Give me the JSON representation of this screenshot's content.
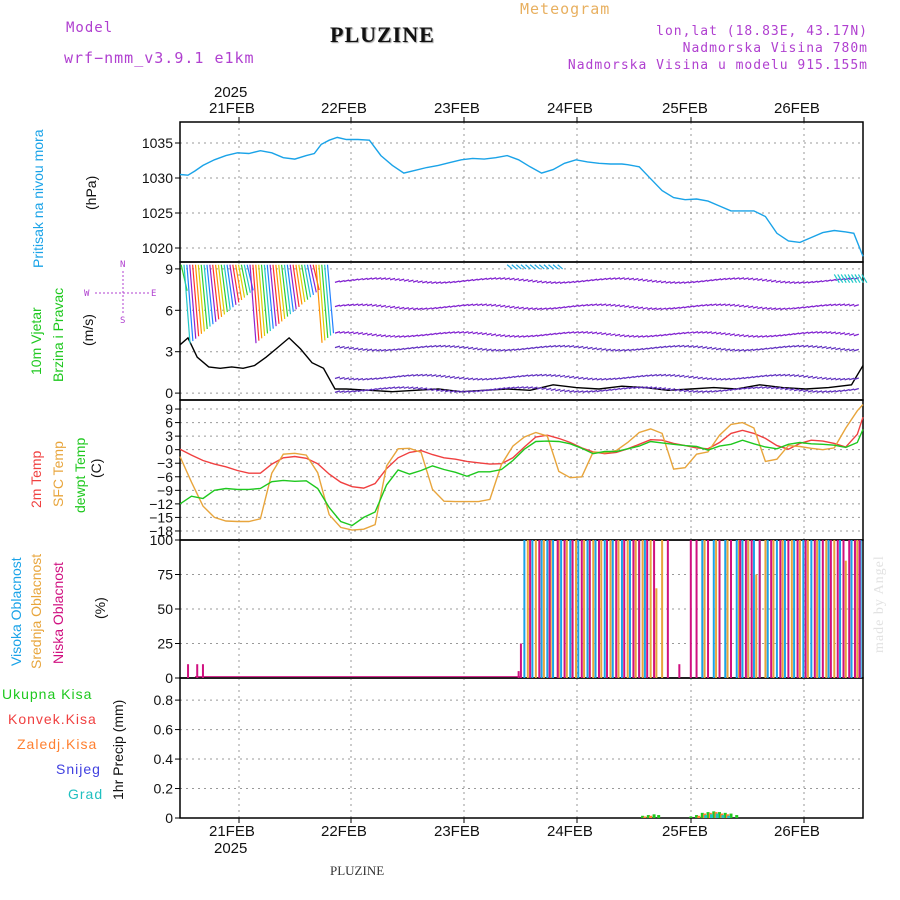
{
  "header": {
    "model_label": "Model",
    "model_name": "wrf−nmm_v3.9.1  e1km",
    "title": "PLUZINE",
    "product": "Meteogram",
    "lonlat": "lon,lat (18.83E, 43.17N)",
    "elevation": "Nadmorska Visina 780m",
    "model_elevation": "Nadmorska Visina u modelu 915.155m",
    "year_label": "2025"
  },
  "footer": {
    "station": "PLUZINE",
    "year_label": "2025"
  },
  "watermark": "made by Angel",
  "colors": {
    "pressure": "#1aa3e8",
    "t2m": "#f04040",
    "sfc": "#e8a53c",
    "dewpt": "#1ec81e",
    "high_cloud": "#1aa3e8",
    "mid_cloud": "#e8a53c",
    "low_cloud": "#d01080",
    "total_precip": "#1ec81e",
    "conv_precip": "#f04040",
    "frozen_precip": "#ff8030",
    "snow": "#4040e0",
    "graupel": "#20c0c0",
    "wind_label": "#1ec81e",
    "legend_purple": "#b040d0"
  },
  "chart_data": [
    {
      "type": "line",
      "panel": "pressure",
      "ylabel": [
        "Pritisak na nivou mora",
        "(hPa)"
      ],
      "ylim": [
        1018,
        1038
      ],
      "yticks": [
        1020,
        1025,
        1030,
        1035
      ],
      "x_ticks": [
        "21FEB",
        "22FEB",
        "23FEB",
        "24FEB",
        "25FEB",
        "26FEB"
      ],
      "x_range_days": [
        20.55,
        26.5
      ],
      "grid": true,
      "series": [
        {
          "name": "Pritisak na nivou mora",
          "x": [
            20.55,
            20.62,
            20.68,
            20.75,
            20.85,
            20.95,
            21.05,
            21.15,
            21.25,
            21.35,
            21.45,
            21.55,
            21.65,
            21.72,
            21.78,
            21.85,
            21.92,
            22.0,
            22.1,
            22.2,
            22.3,
            22.4,
            22.5,
            22.6,
            22.7,
            22.8,
            22.9,
            23.0,
            23.1,
            23.2,
            23.3,
            23.4,
            23.5,
            23.6,
            23.7,
            23.8,
            23.9,
            24.0,
            24.1,
            24.2,
            24.3,
            24.4,
            24.45,
            24.55,
            24.65,
            24.75,
            24.85,
            24.95,
            25.05,
            25.15,
            25.25,
            25.35,
            25.45,
            25.55,
            25.65,
            25.75,
            25.85,
            25.95,
            26.05,
            26.15,
            26.25,
            26.35,
            26.42,
            26.5
          ],
          "y": [
            1030.5,
            1030.4,
            1031.0,
            1031.8,
            1032.6,
            1033.2,
            1033.6,
            1033.5,
            1033.9,
            1033.6,
            1032.9,
            1032.7,
            1033.2,
            1033.5,
            1034.8,
            1035.4,
            1035.8,
            1035.5,
            1035.5,
            1035.4,
            1033.2,
            1031.8,
            1030.7,
            1031.1,
            1031.5,
            1031.8,
            1032.2,
            1032.6,
            1032.8,
            1032.7,
            1032.9,
            1033.2,
            1032.6,
            1031.6,
            1030.7,
            1031.2,
            1032.1,
            1032.6,
            1032.3,
            1032.1,
            1032.0,
            1032.0,
            1031.9,
            1031.6,
            1029.9,
            1028.2,
            1027.2,
            1026.9,
            1027.0,
            1026.7,
            1026.0,
            1025.3,
            1025.3,
            1025.3,
            1024.5,
            1022.1,
            1021.0,
            1020.8,
            1021.5,
            1022.2,
            1022.5,
            1022.3,
            1022.1,
            1018.8
          ]
        }
      ]
    },
    {
      "type": "line",
      "panel": "wind",
      "ylabel": [
        "10m Vjetar",
        "Brzina i Pravac",
        "(m/s)"
      ],
      "compass": [
        "N",
        "W",
        "E",
        "S"
      ],
      "ylim": [
        -0.5,
        9.5
      ],
      "yticks": [
        0,
        3,
        6,
        9
      ],
      "grid": true,
      "series": [
        {
          "name": "brzina",
          "x": [
            20.55,
            20.62,
            20.7,
            20.8,
            20.9,
            21.0,
            21.1,
            21.2,
            21.3,
            21.4,
            21.5,
            21.6,
            21.7,
            21.8,
            21.9,
            22.0,
            22.2,
            22.4,
            22.6,
            22.8,
            23.0,
            23.2,
            23.4,
            23.6,
            23.8,
            24.0,
            24.2,
            24.4,
            24.6,
            24.8,
            25.0,
            25.2,
            25.4,
            25.6,
            25.8,
            26.0,
            26.2,
            26.4,
            26.5
          ],
          "y": [
            3.5,
            4.0,
            2.6,
            1.9,
            1.8,
            1.9,
            1.8,
            2.0,
            2.6,
            3.3,
            4.0,
            3.2,
            2.2,
            1.8,
            0.3,
            0.3,
            0.2,
            0.1,
            0.2,
            0.3,
            0.1,
            0.2,
            0.3,
            0.2,
            0.6,
            0.4,
            0.3,
            0.5,
            0.4,
            0.2,
            0.3,
            0.4,
            0.3,
            0.6,
            0.4,
            0.3,
            0.4,
            0.6,
            2.0
          ]
        }
      ]
    },
    {
      "type": "line",
      "panel": "temperature",
      "ylabel": [
        "2m Temp",
        "SFC Temp",
        "dewpt Temp",
        "(C)"
      ],
      "ylim": [
        -20,
        11
      ],
      "yticks": [
        9,
        6,
        3,
        0,
        -3,
        -6,
        -9,
        -12,
        -15,
        -18
      ],
      "grid": true,
      "series": [
        {
          "name": "2m Temp",
          "x": [
            20.55,
            20.65,
            20.75,
            20.85,
            20.95,
            21.05,
            21.15,
            21.25,
            21.35,
            21.45,
            21.55,
            21.65,
            21.75,
            21.85,
            21.95,
            22.05,
            22.15,
            22.25,
            22.35,
            22.45,
            22.55,
            22.65,
            22.75,
            22.85,
            22.95,
            23.05,
            23.15,
            23.25,
            23.35,
            23.45,
            23.55,
            23.65,
            23.75,
            23.85,
            23.95,
            24.05,
            24.15,
            24.25,
            24.35,
            24.45,
            24.55,
            24.65,
            24.75,
            24.85,
            24.95,
            25.05,
            25.15,
            25.25,
            25.35,
            25.45,
            25.55,
            25.65,
            25.75,
            25.85,
            25.95,
            26.05,
            26.15,
            26.25,
            26.35,
            26.45,
            26.5
          ],
          "y": [
            0.1,
            -1.2,
            -2.4,
            -3.2,
            -3.8,
            -4.6,
            -5.2,
            -5.2,
            -3.2,
            -1.8,
            -1.5,
            -1.9,
            -3.1,
            -5.4,
            -7.2,
            -8.2,
            -8.5,
            -7.5,
            -4.2,
            -1.8,
            -0.6,
            -0.2,
            -1.1,
            -1.8,
            -2.1,
            -2.6,
            -2.9,
            -3.2,
            -3.1,
            -1.8,
            0.6,
            2.8,
            3.2,
            2.5,
            1.6,
            0.4,
            -0.5,
            -0.9,
            -0.6,
            0.2,
            1.2,
            2.2,
            2.1,
            1.4,
            0.9,
            0.4,
            0.2,
            1.6,
            3.6,
            4.3,
            3.6,
            2.5,
            0.9,
            0.1,
            1.4,
            2.1,
            1.9,
            1.4,
            0.6,
            3.4,
            7.2
          ]
        },
        {
          "name": "SFC Temp",
          "x": [
            20.55,
            20.65,
            20.75,
            20.85,
            20.95,
            21.05,
            21.15,
            21.25,
            21.35,
            21.45,
            21.55,
            21.65,
            21.75,
            21.85,
            21.95,
            22.05,
            22.15,
            22.25,
            22.35,
            22.45,
            22.55,
            22.65,
            22.75,
            22.85,
            22.95,
            23.05,
            23.15,
            23.25,
            23.35,
            23.45,
            23.55,
            23.65,
            23.75,
            23.85,
            23.95,
            24.05,
            24.15,
            24.25,
            24.35,
            24.45,
            24.55,
            24.65,
            24.75,
            24.85,
            24.95,
            25.05,
            25.15,
            25.25,
            25.35,
            25.45,
            25.55,
            25.65,
            25.75,
            25.85,
            25.95,
            26.05,
            26.15,
            26.25,
            26.35,
            26.45,
            26.5
          ],
          "y": [
            -1.5,
            -7.2,
            -12.5,
            -15.0,
            -15.8,
            -15.9,
            -15.9,
            -15.3,
            -5.2,
            -1.0,
            -0.8,
            -1.2,
            -5.1,
            -14.4,
            -17.2,
            -17.8,
            -17.6,
            -16.6,
            -3.6,
            0.2,
            0.3,
            -0.6,
            -8.8,
            -11.4,
            -11.5,
            -11.5,
            -11.5,
            -11.0,
            -3.3,
            0.8,
            2.8,
            3.8,
            3.0,
            -4.8,
            -6.2,
            -6.0,
            -0.5,
            -0.7,
            -0.2,
            1.6,
            3.8,
            4.6,
            3.6,
            -4.3,
            -4.0,
            -1.0,
            -0.5,
            3.2,
            5.6,
            6.0,
            4.8,
            -2.6,
            -2.1,
            0.9,
            0.7,
            0.3,
            0.0,
            0.4,
            4.8,
            8.6,
            10.0
          ]
        },
        {
          "name": "dewpt Temp",
          "x": [
            20.55,
            20.65,
            20.75,
            20.85,
            20.95,
            21.05,
            21.15,
            21.25,
            21.35,
            21.45,
            21.55,
            21.65,
            21.75,
            21.85,
            21.95,
            22.05,
            22.15,
            22.25,
            22.35,
            22.45,
            22.55,
            22.65,
            22.75,
            22.85,
            22.95,
            23.05,
            23.15,
            23.25,
            23.35,
            23.45,
            23.55,
            23.65,
            23.75,
            23.85,
            23.95,
            24.05,
            24.15,
            24.25,
            24.35,
            24.45,
            24.55,
            24.65,
            24.75,
            24.85,
            24.95,
            25.05,
            25.15,
            25.25,
            25.35,
            25.45,
            25.55,
            25.65,
            25.75,
            25.85,
            25.95,
            26.05,
            26.15,
            26.25,
            26.35,
            26.45,
            26.5
          ],
          "y": [
            -12.0,
            -10.3,
            -10.8,
            -9.0,
            -8.6,
            -8.8,
            -8.8,
            -8.6,
            -7.1,
            -6.8,
            -7.0,
            -6.9,
            -8.6,
            -12.8,
            -15.9,
            -16.8,
            -15.0,
            -13.8,
            -7.8,
            -4.5,
            -5.4,
            -4.6,
            -3.6,
            -4.4,
            -5.0,
            -5.9,
            -4.9,
            -4.9,
            -4.4,
            -2.4,
            0.1,
            1.8,
            1.9,
            1.8,
            1.3,
            0.3,
            -0.9,
            -0.4,
            -0.4,
            0.2,
            0.8,
            1.8,
            1.5,
            1.2,
            0.9,
            0.7,
            -0.1,
            0.8,
            1.2,
            2.1,
            1.3,
            0.6,
            0.2,
            1.2,
            1.6,
            1.3,
            1.2,
            1.0,
            0.5,
            1.6,
            4.5
          ]
        }
      ]
    },
    {
      "type": "bar",
      "panel": "clouds",
      "ylabel": [
        "Visoka Oblacnost",
        "Srednja Oblacnost",
        "Niska Oblacnost",
        "(%)"
      ],
      "ylim": [
        0,
        100
      ],
      "yticks": [
        0,
        25,
        50,
        75,
        100
      ],
      "grid": true,
      "series": [
        {
          "name": "Visoka Oblacnost",
          "x": [
            23.55,
            23.62,
            23.7,
            23.75,
            23.8,
            23.87,
            23.95,
            24.02,
            24.1,
            24.17,
            24.25,
            24.32,
            24.4,
            24.47,
            24.55,
            24.6,
            25.1,
            25.2,
            25.3,
            25.4,
            25.45,
            25.5,
            25.55,
            25.6,
            25.67,
            25.75,
            25.82,
            25.9,
            25.98,
            26.05,
            26.12,
            26.2,
            26.3,
            26.4,
            26.48
          ],
          "values": [
            100,
            100,
            100,
            100,
            100,
            100,
            100,
            100,
            100,
            100,
            100,
            100,
            100,
            100,
            100,
            100,
            100,
            100,
            100,
            100,
            100,
            100,
            100,
            100,
            100,
            100,
            100,
            100,
            100,
            100,
            100,
            100,
            100,
            100,
            100
          ]
        },
        {
          "name": "Srednja Oblacnost",
          "x": [
            23.58,
            23.65,
            23.72,
            23.78,
            23.85,
            23.92,
            24.0,
            24.07,
            24.15,
            24.22,
            24.3,
            24.37,
            24.45,
            24.52,
            24.58,
            24.65,
            24.7,
            24.75,
            25.12,
            25.22,
            25.32,
            25.42,
            25.5,
            25.57,
            25.65,
            25.72,
            25.8,
            25.88,
            25.95,
            26.02,
            26.1,
            26.18,
            26.25,
            26.35,
            26.45
          ],
          "values": [
            100,
            100,
            100,
            100,
            100,
            100,
            100,
            100,
            100,
            100,
            100,
            100,
            100,
            100,
            100,
            100,
            65,
            100,
            100,
            100,
            100,
            100,
            100,
            75,
            100,
            100,
            100,
            100,
            100,
            100,
            100,
            100,
            100,
            85,
            100
          ]
        },
        {
          "name": "Niska Oblacnost",
          "x": [
            20.62,
            20.7,
            20.75,
            23.5,
            23.52,
            23.6,
            23.68,
            23.77,
            23.84,
            23.9,
            23.97,
            24.05,
            24.12,
            24.2,
            24.27,
            24.35,
            24.42,
            24.5,
            24.55,
            24.62,
            24.68,
            24.8,
            24.9,
            25.0,
            25.05,
            25.15,
            25.25,
            25.35,
            25.43,
            25.48,
            25.53,
            25.6,
            25.7,
            25.78,
            25.85,
            25.93,
            26.0,
            26.08,
            26.15,
            26.22,
            26.28,
            26.33,
            26.38,
            26.43,
            26.47
          ],
          "values": [
            10,
            10,
            10,
            5,
            25,
            100,
            100,
            100,
            100,
            100,
            100,
            100,
            100,
            100,
            100,
            100,
            100,
            100,
            100,
            100,
            100,
            100,
            10,
            100,
            100,
            100,
            100,
            100,
            100,
            100,
            100,
            100,
            100,
            100,
            100,
            100,
            100,
            100,
            100,
            100,
            100,
            100,
            100,
            100,
            100
          ]
        }
      ]
    },
    {
      "type": "bar",
      "panel": "precipitation",
      "ylabel": [
        "1hr Precip (mm)"
      ],
      "legend": [
        "Ukupna Kisa",
        "Konvek.Kisa",
        "Zaledj.Kisa",
        "Snijeg",
        "Grad"
      ],
      "ylim": [
        0,
        0.95
      ],
      "yticks": [
        0,
        0.2,
        0.4,
        0.6,
        0.8
      ],
      "grid": true,
      "series": [
        {
          "name": "Ukupna Kisa",
          "x": [
            24.58,
            24.63,
            24.68,
            24.72,
            25.0,
            25.05,
            25.1,
            25.15,
            25.2,
            25.25,
            25.3,
            25.35,
            25.4
          ],
          "values": [
            0.015,
            0.02,
            0.025,
            0.02,
            0.01,
            0.02,
            0.035,
            0.04,
            0.045,
            0.04,
            0.035,
            0.03,
            0.02
          ]
        },
        {
          "name": "Zaledj.Kisa",
          "x": [
            24.6,
            24.65,
            25.07,
            25.12,
            25.17,
            25.22,
            25.27,
            25.32
          ],
          "values": [
            0.01,
            0.015,
            0.015,
            0.03,
            0.035,
            0.04,
            0.03,
            0.025
          ]
        },
        {
          "name": "Grad",
          "x": [
            25.13,
            25.18,
            25.23,
            25.28,
            25.33
          ],
          "values": [
            0.02,
            0.025,
            0.03,
            0.02,
            0.015
          ]
        }
      ]
    }
  ]
}
